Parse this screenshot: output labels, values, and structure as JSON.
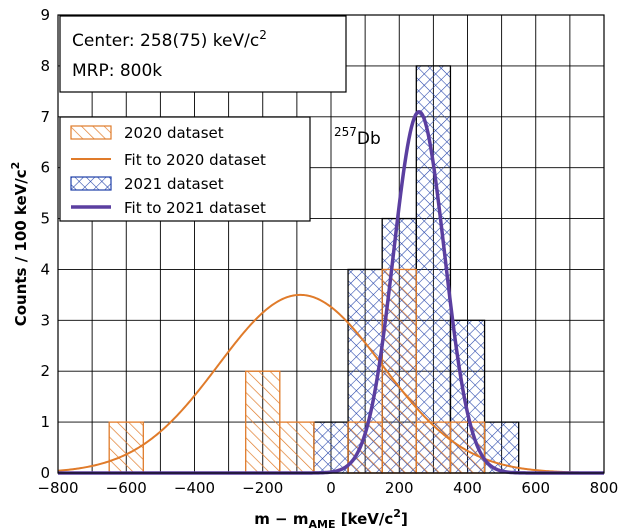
{
  "chart_data": {
    "type": "histogram",
    "xlabel_main": "m − m",
    "xlabel_sub": "AME",
    "xlabel_unit": " [keV/c",
    "xlabel_unit_sup": "2",
    "xlabel_close": "]",
    "ylabel_main": "Counts / 100 keV/c",
    "ylabel_sup": "2",
    "xlim": [
      -800,
      800
    ],
    "ylim": [
      0,
      9
    ],
    "xticks": [
      -800,
      -600,
      -400,
      -200,
      0,
      200,
      400,
      600,
      800
    ],
    "yticks": [
      0,
      1,
      2,
      3,
      4,
      5,
      6,
      7,
      8,
      9
    ],
    "grid": true,
    "info": {
      "center_label": "Center: 258(75) keV/c",
      "center_sup": "2",
      "mrp_label": "MRP: 800k"
    },
    "annotation": {
      "sup": "257",
      "text": "Db"
    },
    "series": [
      {
        "name": "2020 dataset",
        "kind": "hist",
        "color": "#e07b2a",
        "pattern": "diagonal-hatch",
        "bin_width": 100,
        "bins": [
          {
            "x0": -650,
            "count": 1
          },
          {
            "x0": -250,
            "count": 2
          },
          {
            "x0": -150,
            "count": 1
          },
          {
            "x0": 50,
            "count": 1
          },
          {
            "x0": 150,
            "count": 4
          },
          {
            "x0": 250,
            "count": 1
          },
          {
            "x0": 350,
            "count": 1
          }
        ]
      },
      {
        "name": "Fit to 2020 dataset",
        "kind": "gaussian",
        "color": "#e07b2a",
        "amplitude": 3.5,
        "mean": -90,
        "sigma": 240
      },
      {
        "name": "2021 dataset",
        "kind": "hist",
        "color": "#1f3fa8",
        "pattern": "crosshatch",
        "bin_width": 100,
        "bins": [
          {
            "x0": -50,
            "count": 1
          },
          {
            "x0": 50,
            "count": 4
          },
          {
            "x0": 150,
            "count": 5
          },
          {
            "x0": 250,
            "count": 8
          },
          {
            "x0": 350,
            "count": 3
          },
          {
            "x0": 450,
            "count": 1
          }
        ]
      },
      {
        "name": "Fit to 2021 dataset",
        "kind": "gaussian",
        "color": "#5b3fa0",
        "amplitude": 7.1,
        "mean": 258,
        "sigma": 75
      }
    ],
    "legend_position": "upper-left"
  }
}
